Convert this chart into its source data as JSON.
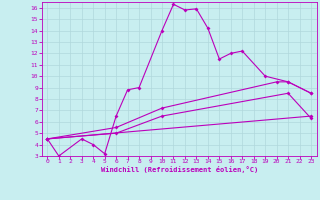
{
  "xlabel": "Windchill (Refroidissement éolien,°C)",
  "bg_color": "#c8eef0",
  "grid_color": "#b0d8dc",
  "line_color": "#bb00bb",
  "xlim": [
    -0.5,
    23.5
  ],
  "ylim": [
    3,
    16.5
  ],
  "yticks": [
    3,
    4,
    5,
    6,
    7,
    8,
    9,
    10,
    11,
    12,
    13,
    14,
    15,
    16
  ],
  "xticks": [
    0,
    1,
    2,
    3,
    4,
    5,
    6,
    7,
    8,
    9,
    10,
    11,
    12,
    13,
    14,
    15,
    16,
    17,
    18,
    19,
    20,
    21,
    22,
    23
  ],
  "curve1_x": [
    0,
    1,
    3,
    4,
    5,
    6,
    7,
    8,
    10,
    11,
    12,
    13,
    14,
    15,
    16,
    17,
    19,
    21,
    23
  ],
  "curve1_y": [
    4.5,
    3.0,
    4.5,
    4.0,
    3.2,
    6.5,
    8.8,
    9.0,
    14.0,
    16.3,
    15.8,
    15.9,
    14.2,
    11.5,
    12.0,
    12.2,
    10.0,
    9.5,
    8.5
  ],
  "curve2_x": [
    0,
    6,
    10,
    20,
    21,
    23
  ],
  "curve2_y": [
    4.5,
    5.5,
    7.2,
    9.5,
    9.5,
    8.5
  ],
  "curve3_x": [
    0,
    6,
    10,
    21,
    23
  ],
  "curve3_y": [
    4.5,
    5.0,
    6.5,
    8.5,
    6.3
  ],
  "curve4_x": [
    0,
    23
  ],
  "curve4_y": [
    4.5,
    6.5
  ]
}
